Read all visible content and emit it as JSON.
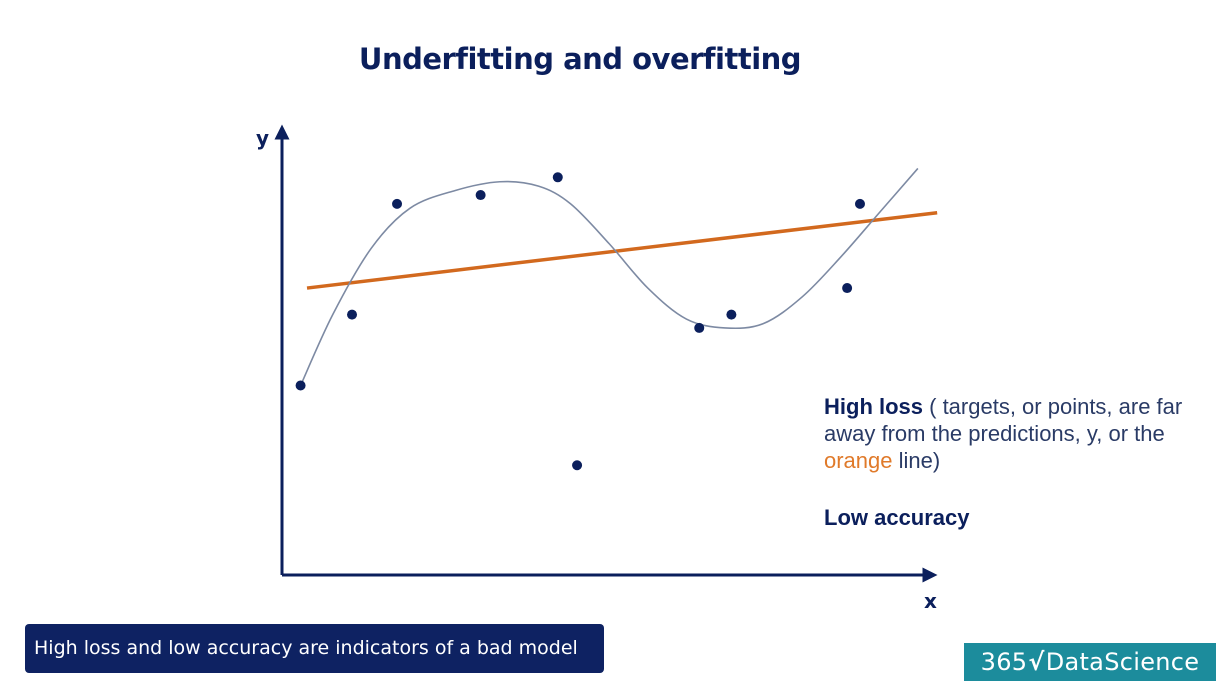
{
  "title": "Underfitting and overfitting",
  "chart_data": {
    "type": "scatter",
    "xlabel": "x",
    "ylabel": "y",
    "xlim": [
      0,
      100
    ],
    "ylim": [
      0,
      100
    ],
    "points": [
      {
        "x": 6,
        "y": 36
      },
      {
        "x": 14,
        "y": 52
      },
      {
        "x": 21,
        "y": 77
      },
      {
        "x": 34,
        "y": 79
      },
      {
        "x": 46,
        "y": 83
      },
      {
        "x": 49,
        "y": 18
      },
      {
        "x": 68,
        "y": 49
      },
      {
        "x": 73,
        "y": 52
      },
      {
        "x": 91,
        "y": 58
      },
      {
        "x": 93,
        "y": 77
      }
    ],
    "series": [
      {
        "name": "linear fit",
        "color": "#d2691e",
        "x": [
          7,
          105
        ],
        "y": [
          58,
          75
        ]
      },
      {
        "name": "overfit curve",
        "color": "#7d8aa3",
        "x": [
          6,
          11,
          17,
          23,
          30,
          37,
          43,
          48,
          54,
          60,
          66,
          72,
          78,
          84,
          90,
          96,
          102
        ],
        "y": [
          36,
          52,
          67,
          76,
          80,
          82,
          81,
          77,
          68,
          58,
          51,
          49,
          50,
          56,
          65,
          75,
          85
        ]
      }
    ]
  },
  "note": {
    "bold": "High loss",
    "text1": " ( targets, or points, are far away from the predictions, y, or the ",
    "orange_word": "orange",
    "text2": " line)"
  },
  "low_accuracy": "Low accuracy",
  "caption": "High loss and low accuracy are indicators of a bad model",
  "brand": {
    "prefix": "365",
    "mark": "√",
    "suffix": "DataScience"
  },
  "colors": {
    "navy": "#0b1f5c",
    "orange": "#d2691e",
    "curve": "#7d8aa3",
    "teal": "#1c8c9c"
  }
}
